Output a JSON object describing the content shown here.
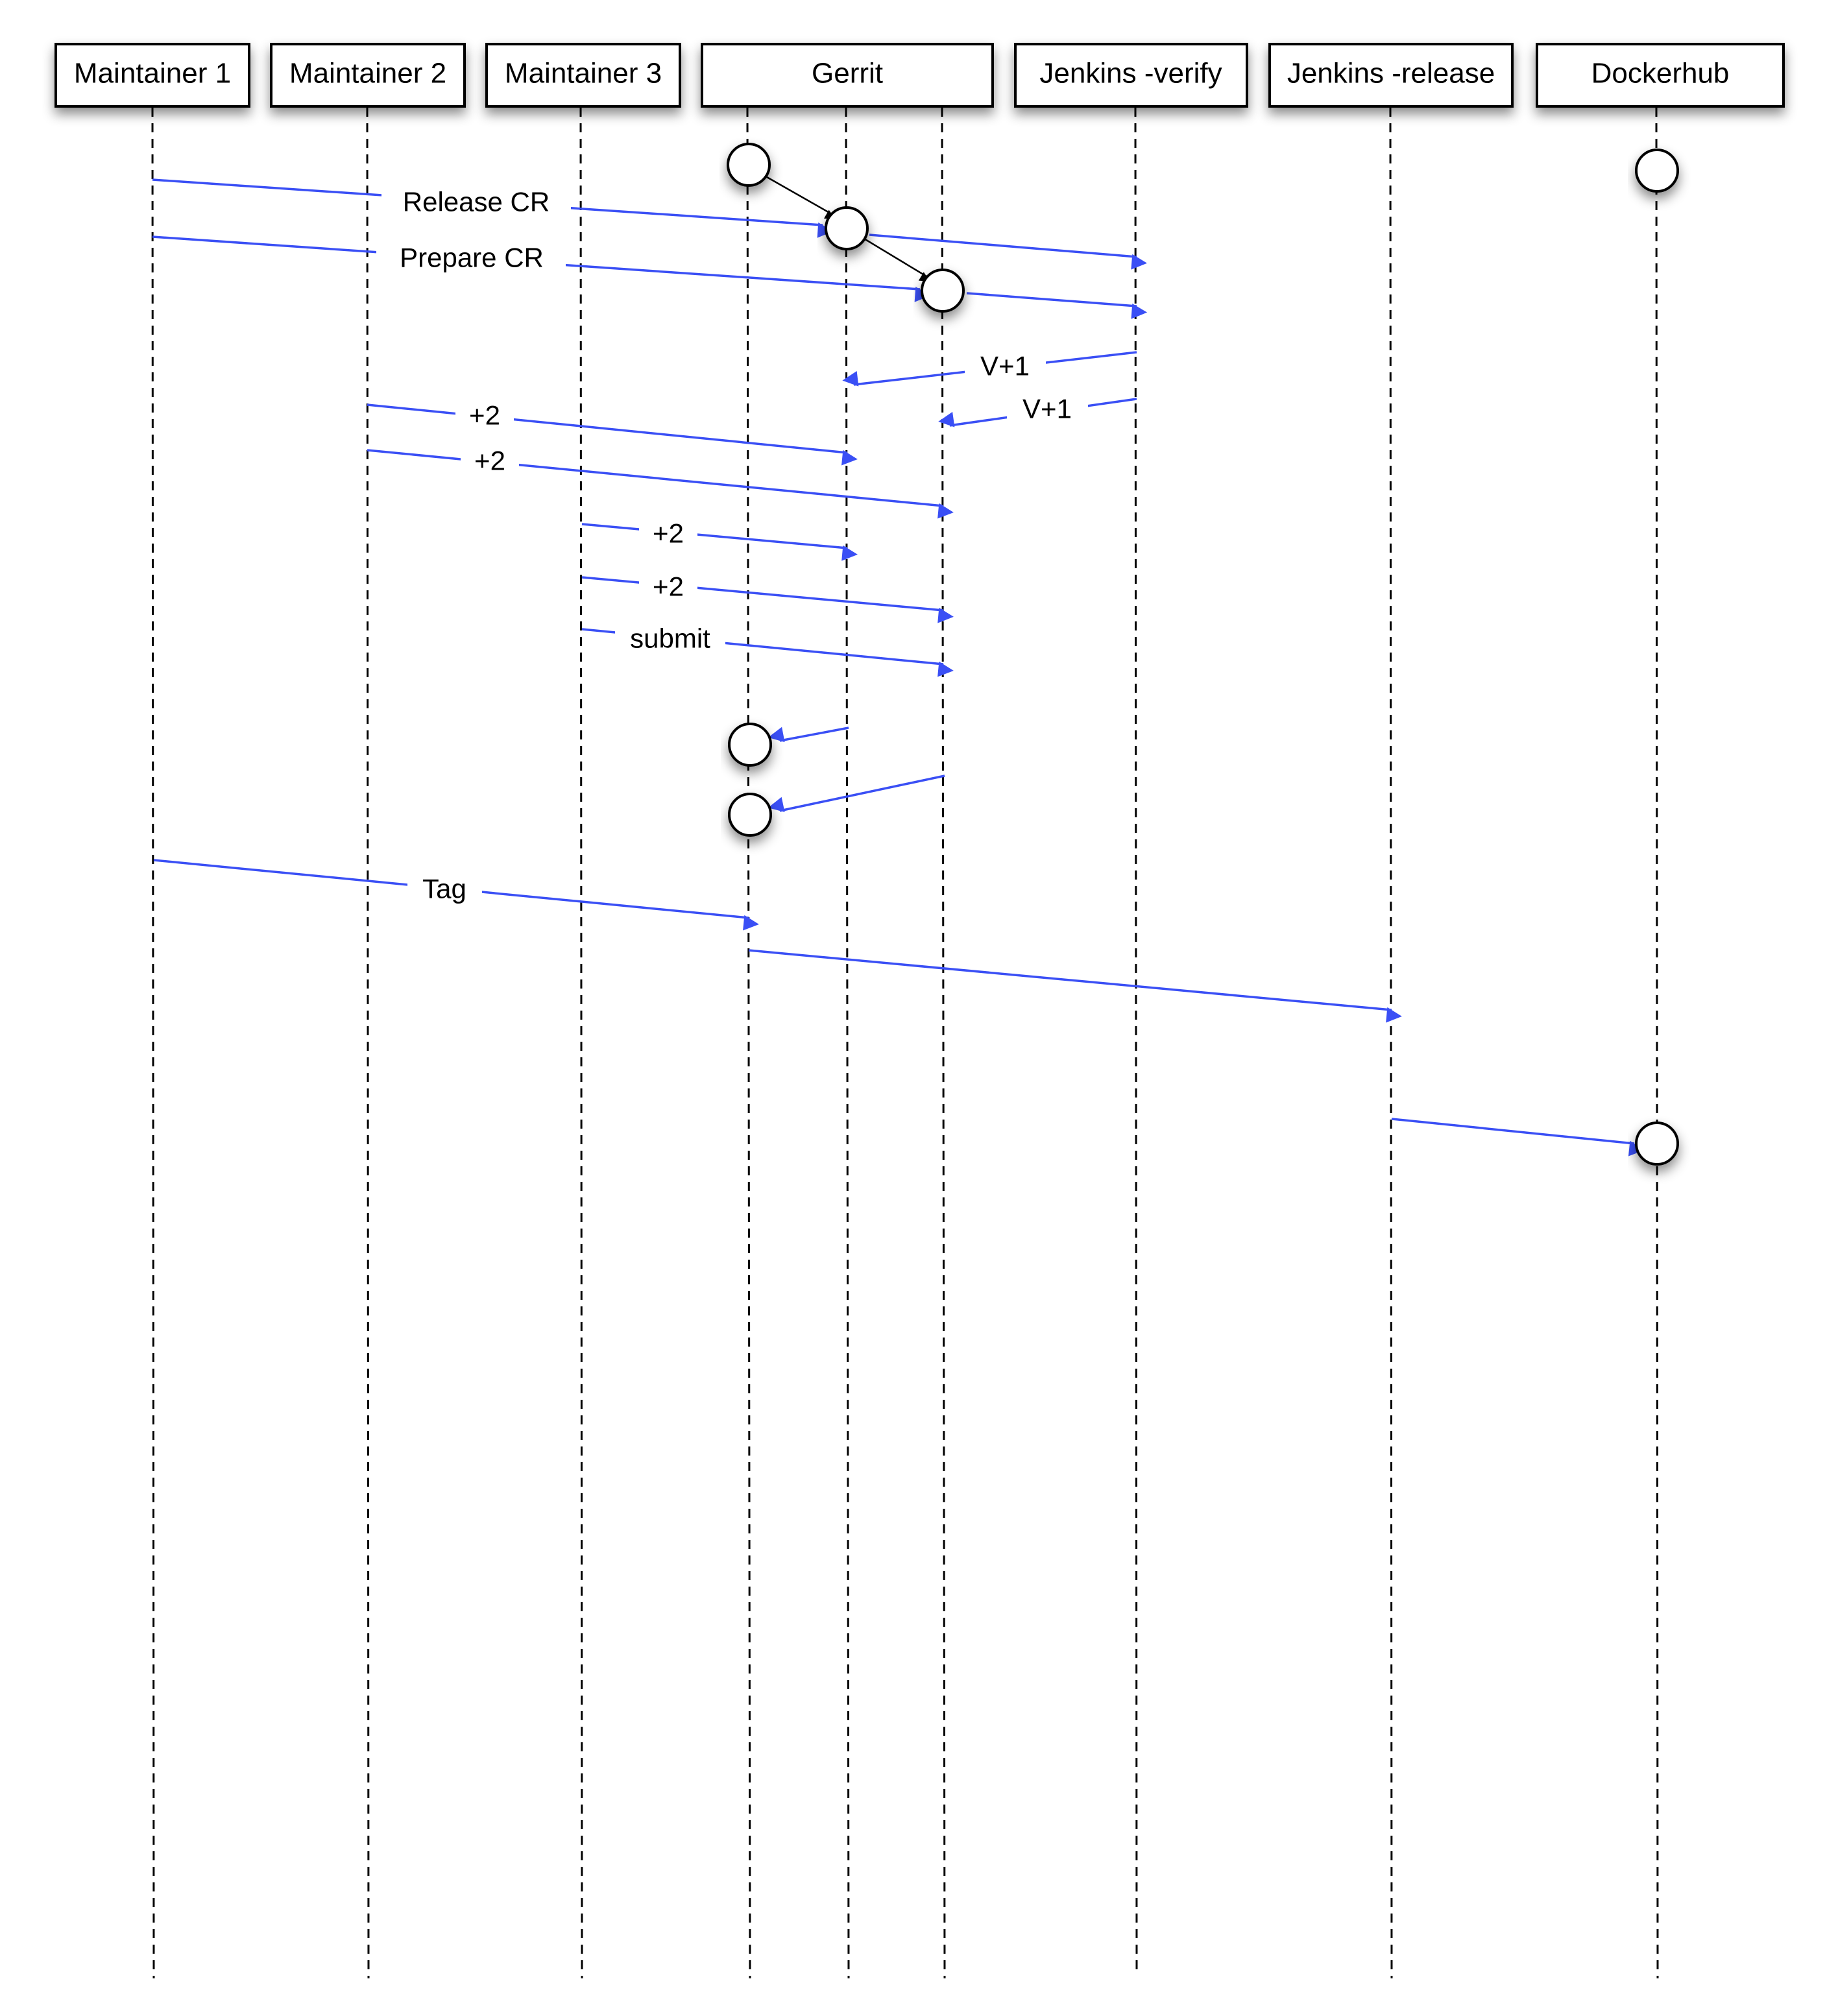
{
  "actors": [
    {
      "id": "m1",
      "label": "Maintainer 1"
    },
    {
      "id": "m2",
      "label": "Maintainer 2"
    },
    {
      "id": "m3",
      "label": "Maintainer 3"
    },
    {
      "id": "gerrit",
      "label": "Gerrit"
    },
    {
      "id": "jverify",
      "label": "Jenkins -verify"
    },
    {
      "id": "jrelease",
      "label": "Jenkins -release"
    },
    {
      "id": "dockerhub",
      "label": "Dockerhub"
    }
  ],
  "messages": [
    {
      "from": "Maintainer 1",
      "to": "Gerrit (release change)",
      "label": "Release CR"
    },
    {
      "from": "Maintainer 1",
      "to": "Gerrit (prepare change)",
      "label": "Prepare CR"
    },
    {
      "from": "Gerrit (release change)",
      "to": "Jenkins -verify",
      "label": ""
    },
    {
      "from": "Gerrit (prepare change)",
      "to": "Jenkins -verify",
      "label": ""
    },
    {
      "from": "Jenkins -verify",
      "to": "Gerrit (release change)",
      "label": "V+1"
    },
    {
      "from": "Jenkins -verify",
      "to": "Gerrit (prepare change)",
      "label": "V+1"
    },
    {
      "from": "Maintainer 2",
      "to": "Gerrit (release change)",
      "label": "+2"
    },
    {
      "from": "Maintainer 2",
      "to": "Gerrit (prepare change)",
      "label": "+2"
    },
    {
      "from": "Maintainer 3",
      "to": "Gerrit (release change)",
      "label": "+2"
    },
    {
      "from": "Maintainer 3",
      "to": "Gerrit (prepare change)",
      "label": "+2"
    },
    {
      "from": "Maintainer 3",
      "to": "Gerrit (prepare change)",
      "label": "submit"
    },
    {
      "from": "Gerrit (release change)",
      "to": "Gerrit (branch)",
      "label": ""
    },
    {
      "from": "Gerrit (prepare change)",
      "to": "Gerrit (branch)",
      "label": ""
    },
    {
      "from": "Maintainer 1",
      "to": "Gerrit (branch)",
      "label": "Tag"
    },
    {
      "from": "Gerrit (branch)",
      "to": "Jenkins -release",
      "label": ""
    },
    {
      "from": "Jenkins -release",
      "to": "Dockerhub",
      "label": ""
    }
  ],
  "colors": {
    "arrow": "#3a4ff5",
    "box_stroke": "#000000",
    "background": "#ffffff"
  }
}
